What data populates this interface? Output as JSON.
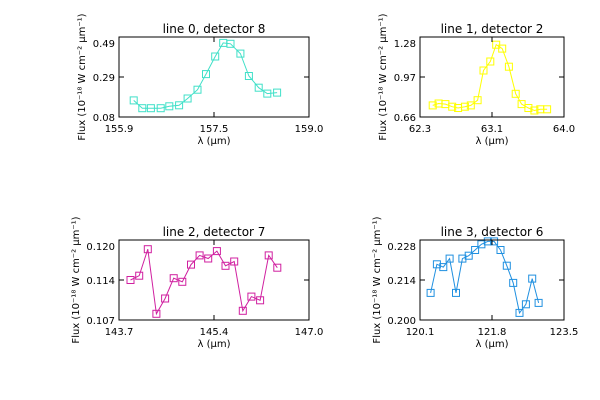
{
  "chart_data": [
    {
      "type": "line",
      "title": "line 0, detector 8",
      "xlabel": "λ (μm)",
      "ylabel": "Flux (10⁻¹⁸ W cm⁻² μm⁻¹)",
      "xlim": [
        155.9,
        159.0
      ],
      "ylim": [
        0.08,
        0.49
      ],
      "xticks": [
        "155.9",
        "157.5",
        "159.0"
      ],
      "yticks": [
        "0.08",
        "0.29",
        "0.49"
      ],
      "color": "#40e0c8",
      "marker": "open-square",
      "x": [
        156.14,
        156.28,
        156.42,
        156.58,
        156.72,
        156.88,
        157.02,
        157.18,
        157.32,
        157.47,
        157.6,
        157.72,
        157.88,
        158.02,
        158.18,
        158.32,
        158.48
      ],
      "y": [
        0.165,
        0.125,
        0.125,
        0.125,
        0.135,
        0.14,
        0.175,
        0.22,
        0.3,
        0.39,
        0.46,
        0.455,
        0.405,
        0.29,
        0.23,
        0.2,
        0.205
      ]
    },
    {
      "type": "line",
      "title": "line 1, detector 2",
      "xlabel": "λ (μm)",
      "ylabel": "Flux (10⁻¹⁸ W cm⁻² μm⁻¹)",
      "xlim": [
        62.3,
        64.0
      ],
      "ylim": [
        0.66,
        1.28
      ],
      "xticks": [
        "62.3",
        "63.1",
        "64.0"
      ],
      "yticks": [
        "0.66",
        "0.97",
        "1.28"
      ],
      "color": "#ffff00",
      "marker": "open-square",
      "x": [
        62.45,
        62.52,
        62.6,
        62.68,
        62.75,
        62.83,
        62.9,
        62.98,
        63.05,
        63.13,
        63.2,
        63.27,
        63.35,
        63.43,
        63.5,
        63.58,
        63.65,
        63.72,
        63.8
      ],
      "y": [
        0.75,
        0.765,
        0.76,
        0.74,
        0.73,
        0.74,
        0.75,
        0.79,
        1.02,
        1.09,
        1.22,
        1.19,
        1.05,
        0.84,
        0.76,
        0.73,
        0.71,
        0.72,
        0.72
      ]
    },
    {
      "type": "line",
      "title": "line 2, detector 7",
      "xlabel": "λ (μm)",
      "ylabel": "Flux (10⁻¹⁸ W cm⁻² μm⁻¹)",
      "xlim": [
        143.7,
        147.0
      ],
      "ylim": [
        0.107,
        0.12
      ],
      "xticks": [
        "143.7",
        "145.4",
        "147.0"
      ],
      "yticks": [
        "0.107",
        "0.114",
        "0.120"
      ],
      "color": "#d020a0",
      "marker": "open-square",
      "x": [
        143.9,
        144.05,
        144.2,
        144.35,
        144.5,
        144.65,
        144.8,
        144.95,
        145.1,
        145.25,
        145.4,
        145.55,
        145.7,
        145.85,
        146.0,
        146.15,
        146.3,
        146.45
      ],
      "y": [
        0.1135,
        0.1142,
        0.1185,
        0.108,
        0.1105,
        0.1138,
        0.1132,
        0.116,
        0.1175,
        0.117,
        0.1182,
        0.1158,
        0.1165,
        0.1085,
        0.1108,
        0.1102,
        0.1175,
        0.1155
      ]
    },
    {
      "type": "line",
      "title": "line 3, detector 6",
      "xlabel": "λ (μm)",
      "ylabel": "Flux (10⁻¹⁸ W cm⁻² μm⁻¹)",
      "xlim": [
        120.1,
        123.5
      ],
      "ylim": [
        0.2,
        0.228
      ],
      "xticks": [
        "120.1",
        "121.8",
        "123.5"
      ],
      "yticks": [
        "0.200",
        "0.214",
        "0.228"
      ],
      "color": "#2090e0",
      "marker": "open-square",
      "x": [
        120.35,
        120.5,
        120.65,
        120.8,
        120.95,
        121.1,
        121.25,
        121.4,
        121.55,
        121.7,
        121.85,
        122.0,
        122.15,
        122.3,
        122.45,
        122.6,
        122.75,
        122.9
      ],
      "y": [
        0.2095,
        0.2195,
        0.2185,
        0.2215,
        0.2095,
        0.2215,
        0.2225,
        0.2245,
        0.2265,
        0.2275,
        0.2275,
        0.2245,
        0.219,
        0.213,
        0.2025,
        0.2055,
        0.2145,
        0.206
      ]
    }
  ]
}
